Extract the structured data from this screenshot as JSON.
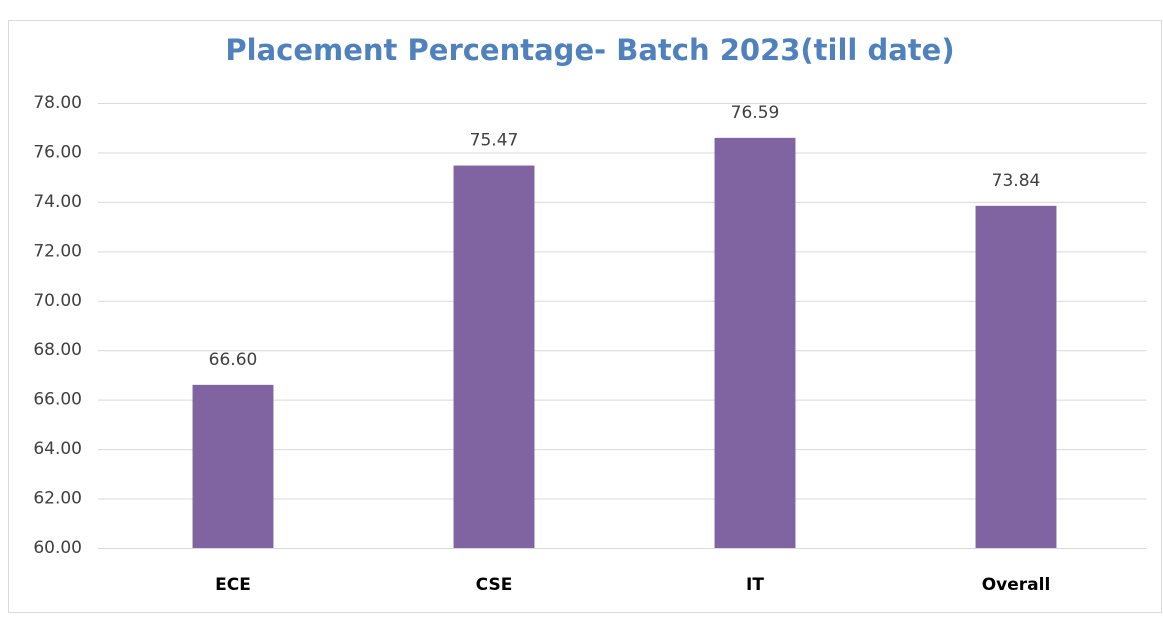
{
  "chart_data": {
    "type": "bar",
    "title": "Placement Percentage- Batch 2023(till date)",
    "categories": [
      "ECE",
      "CSE",
      "IT",
      "Overall"
    ],
    "values": [
      66.6,
      75.47,
      76.59,
      73.84
    ],
    "value_labels": [
      "66.60",
      "75.47",
      "76.59",
      "73.84"
    ],
    "color": "#8064a2",
    "ylim": [
      60,
      78
    ],
    "yticks": [
      {
        "value": 60,
        "label": "60.00"
      },
      {
        "value": 62,
        "label": "62.00"
      },
      {
        "value": 64,
        "label": "64.00"
      },
      {
        "value": 66,
        "label": "66.00"
      },
      {
        "value": 68,
        "label": "68.00"
      },
      {
        "value": 70,
        "label": "70.00"
      },
      {
        "value": 72,
        "label": "72.00"
      },
      {
        "value": 74,
        "label": "74.00"
      },
      {
        "value": 76,
        "label": "76.00"
      },
      {
        "value": 78,
        "label": "78.00"
      }
    ],
    "grid": true
  }
}
